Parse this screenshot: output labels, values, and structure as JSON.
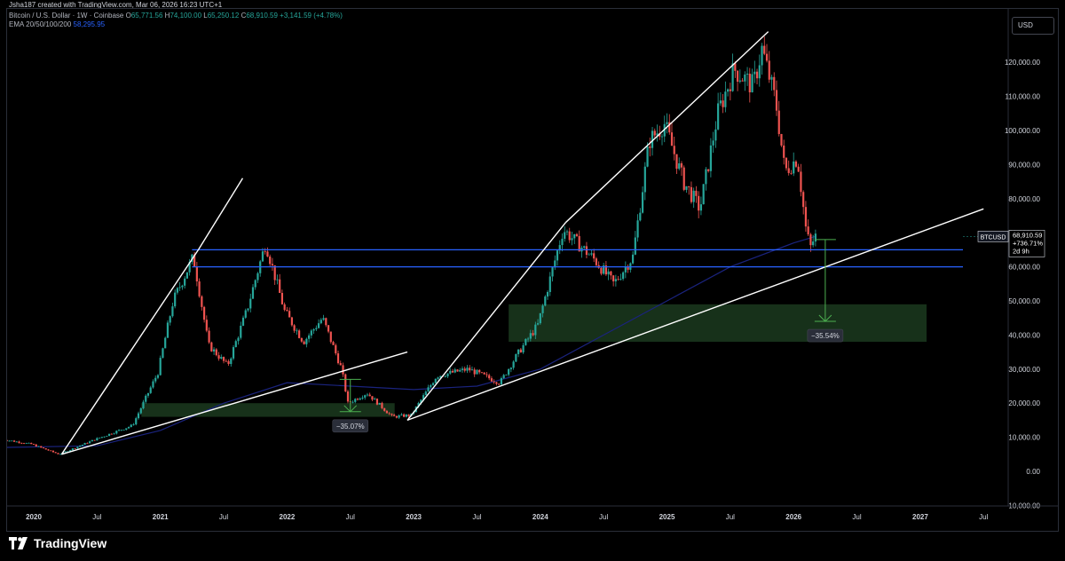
{
  "header": {
    "credit": "Jsha187 created with TradingView.com, Mar 06, 2026 16:23 UTC+1",
    "symbol_title": "Bitcoin / U.S. Dollar · 1W · Coinbase",
    "ohlc": {
      "o_label": "O",
      "o_value": "65,771.56",
      "h_label": "H",
      "h_value": "74,100.00",
      "l_label": "L",
      "l_value": "65,250.12",
      "c_label": "C",
      "c_value": "68,910.59",
      "change": "+3,141.59 (+4.78%)"
    },
    "ema_label": "EMA 20/50/100/200",
    "ema_value": "58,295.95"
  },
  "currency_button": "USD",
  "price_badge": {
    "symbol": "BTCUSD",
    "price": "68,910.59",
    "change": "+736.71%",
    "countdown": "2d 9h"
  },
  "annotations": {
    "drop_2022": "−35.07%",
    "drop_2026": "−35.54%"
  },
  "footer": {
    "brand": "TradingView"
  },
  "colors": {
    "up": "#26a69a",
    "down": "#ef5350",
    "ema": "#1a237e",
    "support_line": "#2962ff",
    "trendline": "#ffffff",
    "zone": "#1b3a1f",
    "measure": "#4caf50"
  },
  "chart_data": {
    "type": "candlestick",
    "title": "Bitcoin / U.S. Dollar · 1W · Coinbase",
    "x_ticks": [
      "2020",
      "Jul",
      "2021",
      "Jul",
      "2022",
      "Jul",
      "2023",
      "Jul",
      "2024",
      "Jul",
      "2025",
      "Jul",
      "2026",
      "Jul",
      "2027",
      "Jul"
    ],
    "y_ticks": [
      "120,000.00",
      "110,000.00",
      "100,000.00",
      "90,000.00",
      "80,000.00",
      "70,000.00",
      "60,000.00",
      "50,000.00",
      "40,000.00",
      "30,000.00",
      "20,000.00",
      "10,000.00",
      "0.00",
      "−10,000.00"
    ],
    "ylim": [
      -10000,
      130000
    ],
    "horizontal_levels": [
      65000,
      60000
    ],
    "price_path": [
      {
        "t": 2019.75,
        "p": 9500
      },
      {
        "t": 2020.0,
        "p": 8000
      },
      {
        "t": 2020.22,
        "p": 5000
      },
      {
        "t": 2020.5,
        "p": 9300
      },
      {
        "t": 2020.8,
        "p": 13500
      },
      {
        "t": 2021.0,
        "p": 29000
      },
      {
        "t": 2021.12,
        "p": 50000
      },
      {
        "t": 2021.28,
        "p": 63000
      },
      {
        "t": 2021.4,
        "p": 37000
      },
      {
        "t": 2021.55,
        "p": 31000
      },
      {
        "t": 2021.7,
        "p": 47000
      },
      {
        "t": 2021.85,
        "p": 67000
      },
      {
        "t": 2022.0,
        "p": 47000
      },
      {
        "t": 2022.15,
        "p": 38000
      },
      {
        "t": 2022.3,
        "p": 45000
      },
      {
        "t": 2022.45,
        "p": 30000
      },
      {
        "t": 2022.5,
        "p": 20000
      },
      {
        "t": 2022.65,
        "p": 23000
      },
      {
        "t": 2022.85,
        "p": 16000
      },
      {
        "t": 2023.0,
        "p": 16500
      },
      {
        "t": 2023.2,
        "p": 28000
      },
      {
        "t": 2023.45,
        "p": 30000
      },
      {
        "t": 2023.7,
        "p": 26000
      },
      {
        "t": 2023.85,
        "p": 35000
      },
      {
        "t": 2024.0,
        "p": 43000
      },
      {
        "t": 2024.2,
        "p": 71000
      },
      {
        "t": 2024.45,
        "p": 62000
      },
      {
        "t": 2024.6,
        "p": 55000
      },
      {
        "t": 2024.75,
        "p": 63000
      },
      {
        "t": 2024.88,
        "p": 97000
      },
      {
        "t": 2025.0,
        "p": 102000
      },
      {
        "t": 2025.15,
        "p": 85000
      },
      {
        "t": 2025.28,
        "p": 77000
      },
      {
        "t": 2025.42,
        "p": 105000
      },
      {
        "t": 2025.55,
        "p": 118000
      },
      {
        "t": 2025.7,
        "p": 113000
      },
      {
        "t": 2025.77,
        "p": 124000
      },
      {
        "t": 2025.88,
        "p": 108000
      },
      {
        "t": 2025.95,
        "p": 88000
      },
      {
        "t": 2026.05,
        "p": 92000
      },
      {
        "t": 2026.12,
        "p": 70000
      },
      {
        "t": 2026.16,
        "p": 65000
      },
      {
        "t": 2026.18,
        "p": 68910
      }
    ],
    "ema_path": [
      {
        "t": 2019.75,
        "p": 7000
      },
      {
        "t": 2020.5,
        "p": 7500
      },
      {
        "t": 2021.0,
        "p": 12000
      },
      {
        "t": 2021.5,
        "p": 20000
      },
      {
        "t": 2022.0,
        "p": 26000
      },
      {
        "t": 2022.5,
        "p": 25000
      },
      {
        "t": 2023.0,
        "p": 24000
      },
      {
        "t": 2023.5,
        "p": 25000
      },
      {
        "t": 2024.0,
        "p": 30000
      },
      {
        "t": 2024.5,
        "p": 40000
      },
      {
        "t": 2025.0,
        "p": 50000
      },
      {
        "t": 2025.5,
        "p": 60000
      },
      {
        "t": 2026.0,
        "p": 67000
      },
      {
        "t": 2026.18,
        "p": 69000
      }
    ],
    "zones": [
      {
        "t1": 2020.85,
        "t2": 2022.85,
        "p1": 16000,
        "p2": 20000
      },
      {
        "t1": 2023.75,
        "t2": 2027.05,
        "p1": 38000,
        "p2": 49000
      }
    ],
    "trendlines": [
      {
        "t1": 2020.22,
        "p1": 5000,
        "t2": 2021.3,
        "p2": 65000
      },
      {
        "t1": 2021.3,
        "p1": 65000,
        "t2": 2021.65,
        "p2": 86000
      },
      {
        "t1": 2020.22,
        "p1": 5000,
        "t2": 2022.95,
        "p2": 35000
      },
      {
        "t1": 2022.95,
        "p1": 15000,
        "t2": 2024.2,
        "p2": 73000
      },
      {
        "t1": 2024.2,
        "p1": 73000,
        "t2": 2025.8,
        "p2": 129000
      },
      {
        "t1": 2022.95,
        "p1": 15000,
        "t2": 2027.5,
        "p2": 77000
      }
    ],
    "measures": [
      {
        "t": 2022.5,
        "p_top": 27000,
        "p_bottom": 17500,
        "label": "drop_2022"
      },
      {
        "t": 2026.25,
        "p_top": 68000,
        "p_bottom": 44000,
        "label": "drop_2026"
      }
    ],
    "current_price": 68910.59
  }
}
